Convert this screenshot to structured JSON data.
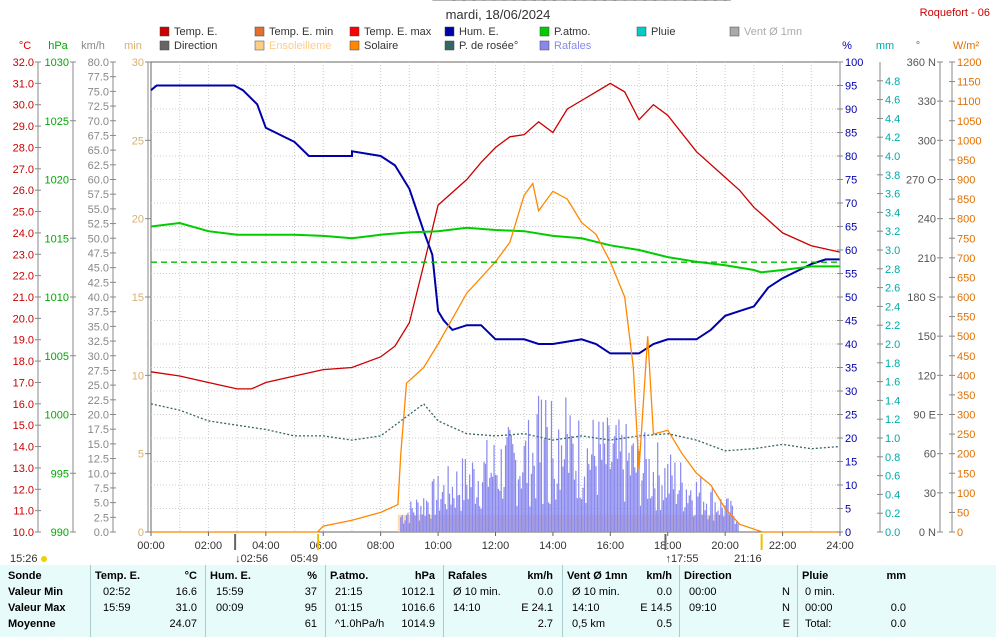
{
  "page": {
    "title": "mardi, 18/06/2024",
    "station": "Roquefort - 06"
  },
  "legend": [
    {
      "label": "Temp. E.",
      "color": "#cc0000"
    },
    {
      "label": "Temp. E. min",
      "color": "#e07030"
    },
    {
      "label": "Temp. E. max",
      "color": "#ff0000"
    },
    {
      "label": "Hum. E.",
      "color": "#0000aa"
    },
    {
      "label": "P.atmo.",
      "color": "#00cc00"
    },
    {
      "label": "Pluie",
      "color": "#00cccc"
    },
    {
      "label": "Vent Ø 1mn",
      "color": "#aaaaaa"
    },
    {
      "label": "Direction",
      "color": "#666666"
    },
    {
      "label": "Ensoleilleme",
      "color": "#ffcc88"
    },
    {
      "label": "Solaire",
      "color": "#ff8800"
    },
    {
      "label": "P. de rosée°",
      "color": "#336666"
    },
    {
      "label": "Rafales",
      "color": "#8888ee"
    }
  ],
  "axis_units": {
    "temp": "°C",
    "hpa": "hPa",
    "kmh": "km/h",
    "min": "min",
    "pct": "%",
    "mm": "mm",
    "deg": "°",
    "wm2": "W/m²"
  },
  "chart_data": {
    "type": "line",
    "x_ticks": [
      "00:00",
      "02:00",
      "04:00",
      "06:00",
      "08:00",
      "10:00",
      "12:00",
      "14:00",
      "16:00",
      "18:00",
      "20:00",
      "22:00",
      "24:00"
    ],
    "axes": {
      "temp": {
        "min": 10.0,
        "max": 32.0,
        "step": 1.0
      },
      "hpa": {
        "min": 990,
        "max": 1030,
        "step": 5
      },
      "kmh": {
        "min": 0.0,
        "max": 80.0,
        "step": 2.5
      },
      "min": {
        "min": 0,
        "max": 30,
        "step": 5
      },
      "pct": {
        "min": 0,
        "max": 100,
        "step": 5
      },
      "mm": {
        "min": 0.0,
        "max": 5.0,
        "step": 0.2,
        "labels_to": 4.8
      },
      "deg": {
        "ticks": [
          [
            0,
            "0 N"
          ],
          [
            30,
            "30"
          ],
          [
            60,
            "60"
          ],
          [
            90,
            "90 E"
          ],
          [
            120,
            "120"
          ],
          [
            150,
            "150"
          ],
          [
            180,
            "180 S"
          ],
          [
            210,
            "210"
          ],
          [
            240,
            "240"
          ],
          [
            270,
            "270 O"
          ],
          [
            300,
            "300"
          ],
          [
            330,
            "330"
          ],
          [
            360,
            "360 N"
          ]
        ]
      },
      "wm2": {
        "min": 0,
        "max": 1200,
        "step": 50
      }
    },
    "series": [
      {
        "name": "Temp. E.",
        "axis": "temp",
        "color": "#cc0000",
        "points": [
          [
            0,
            17.5
          ],
          [
            1,
            17.3
          ],
          [
            2,
            17.0
          ],
          [
            3,
            16.7
          ],
          [
            3.5,
            16.7
          ],
          [
            4,
            17.0
          ],
          [
            5,
            17.3
          ],
          [
            6,
            17.6
          ],
          [
            7,
            17.7
          ],
          [
            8,
            18.2
          ],
          [
            8.5,
            18.7
          ],
          [
            9,
            19.8
          ],
          [
            9.5,
            22.5
          ],
          [
            10,
            25.3
          ],
          [
            11,
            26.5
          ],
          [
            11.5,
            27.3
          ],
          [
            12,
            28.0
          ],
          [
            12.5,
            28.5
          ],
          [
            13,
            28.6
          ],
          [
            13.5,
            29.2
          ],
          [
            14,
            28.7
          ],
          [
            14.5,
            29.8
          ],
          [
            15,
            30.2
          ],
          [
            15.5,
            30.6
          ],
          [
            16,
            31.0
          ],
          [
            16.5,
            30.6
          ],
          [
            17,
            29.3
          ],
          [
            17.5,
            30.0
          ],
          [
            18,
            29.5
          ],
          [
            19,
            27.8
          ],
          [
            20,
            26.6
          ],
          [
            20.5,
            26.0
          ],
          [
            21,
            25.2
          ],
          [
            22,
            24.0
          ],
          [
            23,
            23.4
          ],
          [
            24,
            23.1
          ]
        ]
      },
      {
        "name": "Hum. E.",
        "axis": "pct",
        "color": "#0000aa",
        "points": [
          [
            0,
            94
          ],
          [
            0.2,
            95
          ],
          [
            2.9,
            95
          ],
          [
            3.2,
            94
          ],
          [
            3.7,
            91
          ],
          [
            4,
            86
          ],
          [
            5,
            83
          ],
          [
            5.5,
            80
          ],
          [
            6,
            80
          ],
          [
            7,
            80
          ],
          [
            7,
            81
          ],
          [
            8,
            80
          ],
          [
            8.5,
            78
          ],
          [
            9,
            73
          ],
          [
            9.5,
            64
          ],
          [
            9.8,
            59
          ],
          [
            10,
            47
          ],
          [
            10.2,
            45
          ],
          [
            10.5,
            43
          ],
          [
            11,
            44
          ],
          [
            11.5,
            44
          ],
          [
            12,
            41
          ],
          [
            12.5,
            41
          ],
          [
            13,
            41
          ],
          [
            13.5,
            40
          ],
          [
            14,
            40
          ],
          [
            15,
            41
          ],
          [
            15.5,
            40
          ],
          [
            16,
            38
          ],
          [
            17,
            38
          ],
          [
            17.5,
            40
          ],
          [
            18,
            41
          ],
          [
            18.5,
            41
          ],
          [
            19,
            41
          ],
          [
            19.5,
            43
          ],
          [
            20,
            46
          ],
          [
            20.5,
            47
          ],
          [
            21,
            48
          ],
          [
            21.5,
            52
          ],
          [
            22,
            54
          ],
          [
            23,
            57
          ],
          [
            23.5,
            58
          ],
          [
            24,
            58
          ]
        ]
      },
      {
        "name": "P.atmo.",
        "axis": "hpa",
        "color": "#00cc00",
        "points": [
          [
            0,
            1016.0
          ],
          [
            1,
            1016.3
          ],
          [
            2,
            1015.6
          ],
          [
            3,
            1015.3
          ],
          [
            5,
            1015.3
          ],
          [
            6,
            1015.2
          ],
          [
            7,
            1015.0
          ],
          [
            8,
            1015.3
          ],
          [
            9,
            1015.5
          ],
          [
            10,
            1015.6
          ],
          [
            11,
            1015.9
          ],
          [
            12,
            1015.7
          ],
          [
            13,
            1015.6
          ],
          [
            14,
            1015.2
          ],
          [
            15,
            1015.0
          ],
          [
            16,
            1014.4
          ],
          [
            17,
            1014.0
          ],
          [
            18,
            1013.4
          ],
          [
            19,
            1013.0
          ],
          [
            20,
            1012.7
          ],
          [
            21,
            1012.3
          ],
          [
            21.25,
            1012.1
          ],
          [
            22,
            1012.3
          ],
          [
            23,
            1012.6
          ],
          [
            24,
            1012.6
          ]
        ]
      },
      {
        "name": "P. de rosée°",
        "axis": "temp",
        "color": "#336666",
        "dashed": true,
        "points": [
          [
            0,
            16.0
          ],
          [
            1,
            15.7
          ],
          [
            2,
            15.2
          ],
          [
            3,
            15.0
          ],
          [
            4,
            14.8
          ],
          [
            5,
            14.5
          ],
          [
            6,
            14.5
          ],
          [
            7,
            14.3
          ],
          [
            8,
            14.5
          ],
          [
            9,
            15.5
          ],
          [
            9.5,
            16.0
          ],
          [
            10,
            15.2
          ],
          [
            11,
            14.6
          ],
          [
            12,
            14.5
          ],
          [
            13,
            14.6
          ],
          [
            14,
            14.3
          ],
          [
            15,
            14.5
          ],
          [
            16,
            14.3
          ],
          [
            17,
            14.5
          ],
          [
            18,
            14.6
          ],
          [
            19,
            14.3
          ],
          [
            20,
            13.8
          ],
          [
            21,
            13.9
          ],
          [
            22,
            14.1
          ],
          [
            23,
            13.9
          ],
          [
            24,
            14.0
          ]
        ]
      },
      {
        "name": "Solaire",
        "axis": "wm2",
        "color": "#ff8800",
        "points": [
          [
            0,
            0
          ],
          [
            5.8,
            0
          ],
          [
            6,
            15
          ],
          [
            7,
            30
          ],
          [
            8,
            50
          ],
          [
            8.6,
            70
          ],
          [
            8.7,
            200
          ],
          [
            8.9,
            380
          ],
          [
            9.5,
            420
          ],
          [
            10,
            480
          ],
          [
            11,
            610
          ],
          [
            12,
            690
          ],
          [
            12.5,
            740
          ],
          [
            13,
            860
          ],
          [
            13.3,
            890
          ],
          [
            13.5,
            820
          ],
          [
            14,
            870
          ],
          [
            14.5,
            850
          ],
          [
            15,
            790
          ],
          [
            15.5,
            760
          ],
          [
            16,
            690
          ],
          [
            16.5,
            600
          ],
          [
            16.8,
            420
          ],
          [
            17,
            160
          ],
          [
            17.3,
            500
          ],
          [
            17.5,
            250
          ],
          [
            18,
            260
          ],
          [
            18.5,
            200
          ],
          [
            19,
            150
          ],
          [
            19.5,
            120
          ],
          [
            20,
            60
          ],
          [
            20.5,
            20
          ],
          [
            21.3,
            0
          ],
          [
            24,
            0
          ]
        ]
      },
      {
        "name": "Pluie",
        "axis": "mm",
        "color": "#00cccc",
        "dashed": true,
        "points": [
          [
            0,
            2.87
          ],
          [
            24,
            2.87
          ]
        ]
      }
    ],
    "rafales": {
      "start_hour": 8.7,
      "end_hour": 20.5,
      "color": "#8888ee"
    },
    "ensoleillement": {
      "start_hour": 8.6,
      "end_hour": 20.2,
      "color": "#ffcc88"
    },
    "direction_markers": {
      "color": "#666666"
    },
    "events": {
      "sunrise": "05:49",
      "sunset": "21:16",
      "tmin_time": "02:56",
      "tmax_time": "17:55",
      "day_length": "15:26"
    }
  },
  "table": {
    "headers": [
      "Sonde",
      "Temp. E.",
      "°C",
      "Hum. E.",
      "%",
      "P.atmo.",
      "hPa",
      "Rafales",
      "km/h",
      "Vent Ø 1mn",
      "km/h",
      "Direction",
      "Pluie",
      "mm"
    ],
    "rows": [
      {
        "label": "Valeur Min",
        "c1": "02:52",
        "c2": "16.6",
        "c3": "15:59",
        "c4": "37",
        "c5": "21:15",
        "c6": "1012.1",
        "c7": "Ø 10 min.",
        "c8": "0.0",
        "c9": "Ø 10 min.",
        "c10": "0.0",
        "c11": "00:00",
        "c12": "N",
        "c13": "0 min.",
        "c14": ""
      },
      {
        "label": "Valeur Max",
        "c1": "15:59",
        "c2": "31.0",
        "c3": "00:09",
        "c4": "95",
        "c5": "01:15",
        "c6": "1016.6",
        "c7": "14:10",
        "c8": "E 24.1",
        "c9": "14:10",
        "c10": "E 14.5",
        "c11": "09:10",
        "c12": "N",
        "c13": "00:00",
        "c14": "0.0"
      },
      {
        "label": "Moyenne",
        "c1": "",
        "c2": "24.07",
        "c3": "",
        "c4": "61",
        "c5": "^1.0hPa/h",
        "c6": "1014.9",
        "c7": "",
        "c8": "2.7",
        "c9": "0,5 km",
        "c10": "0.5",
        "c11": "",
        "c12": "E",
        "c13": "Total:",
        "c14": "0.0"
      }
    ]
  }
}
